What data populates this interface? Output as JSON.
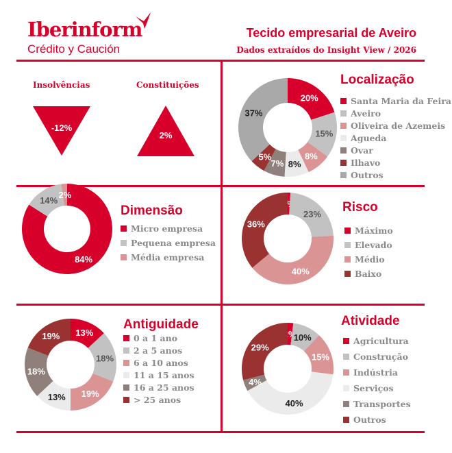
{
  "header": {
    "brand": "Iberinform",
    "brand_sub": "Crédito y Caución",
    "title": "Tecido empresarial de Aveiro",
    "subtitle": "Dados extraídos do Insight View / 2026"
  },
  "indicators": [
    {
      "label": "Insolvências",
      "value": "-12%",
      "direction": "down"
    },
    {
      "label": "Constituições",
      "value": "2%",
      "direction": "up"
    }
  ],
  "colors": {
    "accent": "#d7002a"
  },
  "chart_data": [
    {
      "id": "localizacao",
      "type": "donut",
      "title": "Localização",
      "categories": [
        "Santa Maria da Feira",
        "Aveiro",
        "Oliveira de Azemeis",
        "Agueda",
        "Ovar",
        "Ilhavo",
        "Outros"
      ],
      "values": [
        20,
        15,
        8,
        8,
        7,
        5,
        37
      ],
      "labels": [
        "20%",
        "15%",
        "8%",
        "8%",
        "7%",
        "5%",
        "37%"
      ],
      "colors": [
        "#d7002a",
        "#c2c2c2",
        "#db9494",
        "#ebebeb",
        "#8f807b",
        "#9b3232",
        "#a9a9a9"
      ],
      "label_colors": [
        "#fff",
        "#555",
        "#fff",
        "#222",
        "#fff",
        "#fff",
        "#222"
      ]
    },
    {
      "id": "dimensao",
      "type": "donut",
      "title": "Dimensão",
      "categories": [
        "Micro empresa",
        "Pequena empresa",
        "Média empresa"
      ],
      "values": [
        84,
        14,
        2
      ],
      "labels": [
        "84%",
        "14%",
        "2%"
      ],
      "colors": [
        "#d7002a",
        "#c2c2c2",
        "#db9494"
      ],
      "label_colors": [
        "#fff",
        "#555",
        "#fff"
      ]
    },
    {
      "id": "risco",
      "type": "donut",
      "title": "Risco",
      "categories": [
        "Máximo",
        "Elevado",
        "Médio",
        "Baixo"
      ],
      "values": [
        1,
        23,
        40,
        36
      ],
      "labels": [
        "1%",
        "23%",
        "40%",
        "36%"
      ],
      "colors": [
        "#d7002a",
        "#c2c2c2",
        "#db9494",
        "#9b3232"
      ],
      "label_colors": [
        "#fff",
        "#555",
        "#fff",
        "#fff"
      ]
    },
    {
      "id": "antiguidade",
      "type": "donut",
      "title": "Antiguidade",
      "categories": [
        "0 a 1 ano",
        "2 a 5 anos",
        "6 a 10 anos",
        "11 a 15 anos",
        "16 a 25 anos",
        "> 25 anos"
      ],
      "values": [
        13,
        18,
        19,
        13,
        18,
        19
      ],
      "labels": [
        "13%",
        "18%",
        "19%",
        "13%",
        "18%",
        "19%"
      ],
      "colors": [
        "#d7002a",
        "#c2c2c2",
        "#db9494",
        "#ebebeb",
        "#8f807b",
        "#9b3232"
      ],
      "label_colors": [
        "#fff",
        "#555",
        "#fff",
        "#222",
        "#fff",
        "#fff"
      ]
    },
    {
      "id": "atividade",
      "type": "donut",
      "title": "Atividade",
      "categories": [
        "Agricultura",
        "Construção",
        "Indústria",
        "Serviços",
        "Transportes",
        "Outros"
      ],
      "values": [
        2,
        10,
        15,
        40,
        4,
        29
      ],
      "labels": [
        "2%",
        "10%",
        "15%",
        "40%",
        "4%",
        "29%"
      ],
      "colors": [
        "#d7002a",
        "#c2c2c2",
        "#db9494",
        "#ebebeb",
        "#8f807b",
        "#9b3232"
      ],
      "label_colors": [
        "#fff",
        "#222",
        "#fff",
        "#222",
        "#fff",
        "#fff"
      ]
    }
  ]
}
